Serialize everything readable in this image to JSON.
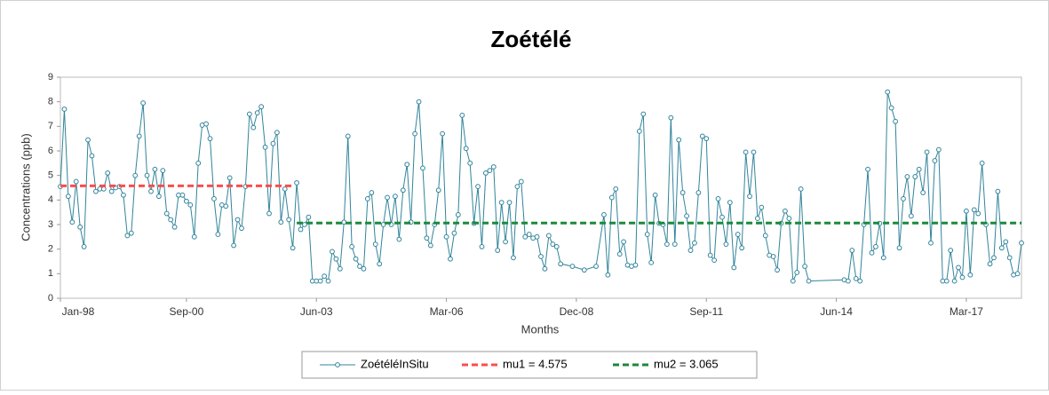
{
  "chart_data": {
    "type": "line",
    "title": "Zoétélé",
    "x_label": "Months",
    "y_label": "Concentrations (ppb)",
    "xlim": [
      "1998-01",
      "2018-05"
    ],
    "xticks": [
      {
        "value": "1998-01",
        "label": "Jan-98"
      },
      {
        "value": "2000-09",
        "label": "Sep-00"
      },
      {
        "value": "2003-06",
        "label": "Jun-03"
      },
      {
        "value": "2006-03",
        "label": "Mar-06"
      },
      {
        "value": "2008-12",
        "label": "Dec-08"
      },
      {
        "value": "2011-09",
        "label": "Sep-11"
      },
      {
        "value": "2014-06",
        "label": "Jun-14"
      },
      {
        "value": "2017-03",
        "label": "Mar-17"
      }
    ],
    "ylim": [
      0,
      9
    ],
    "yticks": [
      0,
      1,
      2,
      3,
      4,
      5,
      6,
      7,
      8,
      9
    ],
    "grid": false,
    "series": [
      {
        "name": "ZoétéléInSitu",
        "color": "#31849b",
        "style": "solid-markers",
        "x": [
          "1998-01",
          "1998-02",
          "1998-03",
          "1998-04",
          "1998-05",
          "1998-06",
          "1998-07",
          "1998-08",
          "1998-09",
          "1998-10",
          "1998-11",
          "1998-12",
          "1999-01",
          "1999-02",
          "1999-03",
          "1999-04",
          "1999-05",
          "1999-06",
          "1999-07",
          "1999-08",
          "1999-09",
          "1999-10",
          "1999-11",
          "1999-12",
          "2000-01",
          "2000-02",
          "2000-03",
          "2000-04",
          "2000-05",
          "2000-06",
          "2000-07",
          "2000-08",
          "2000-09",
          "2000-10",
          "2000-11",
          "2000-12",
          "2001-01",
          "2001-02",
          "2001-03",
          "2001-04",
          "2001-05",
          "2001-06",
          "2001-07",
          "2001-08",
          "2001-09",
          "2001-10",
          "2001-11",
          "2001-12",
          "2002-01",
          "2002-02",
          "2002-03",
          "2002-04",
          "2002-05",
          "2002-06",
          "2002-07",
          "2002-08",
          "2002-09",
          "2002-10",
          "2002-11",
          "2002-12",
          "2003-01",
          "2003-02",
          "2003-03",
          "2003-04",
          "2003-05",
          "2003-06",
          "2003-07",
          "2003-08",
          "2003-09",
          "2003-10",
          "2003-11",
          "2003-12",
          "2004-01",
          "2004-02",
          "2004-03",
          "2004-04",
          "2004-05",
          "2004-06",
          "2004-07",
          "2004-08",
          "2004-09",
          "2004-10",
          "2004-11",
          "2004-12",
          "2005-01",
          "2005-02",
          "2005-03",
          "2005-04",
          "2005-05",
          "2005-06",
          "2005-07",
          "2005-08",
          "2005-09",
          "2005-10",
          "2005-11",
          "2005-12",
          "2006-01",
          "2006-02",
          "2006-03",
          "2006-04",
          "2006-05",
          "2006-06",
          "2006-07",
          "2006-08",
          "2006-09",
          "2006-10",
          "2006-11",
          "2006-12",
          "2007-01",
          "2007-02",
          "2007-03",
          "2007-04",
          "2007-05",
          "2007-06",
          "2007-07",
          "2007-08",
          "2007-09",
          "2007-10",
          "2007-11",
          "2007-12",
          "2008-01",
          "2008-02",
          "2008-03",
          "2008-04",
          "2008-05",
          "2008-06",
          "2008-07",
          "2008-08",
          "2008-11",
          "2009-02",
          "2009-05",
          "2009-07",
          "2009-08",
          "2009-09",
          "2009-10",
          "2009-11",
          "2009-12",
          "2010-01",
          "2010-02",
          "2010-03",
          "2010-04",
          "2010-05",
          "2010-06",
          "2010-07",
          "2010-08",
          "2010-09",
          "2010-10",
          "2010-11",
          "2010-12",
          "2011-01",
          "2011-02",
          "2011-03",
          "2011-04",
          "2011-05",
          "2011-06",
          "2011-07",
          "2011-08",
          "2011-09",
          "2011-10",
          "2011-11",
          "2011-12",
          "2012-01",
          "2012-02",
          "2012-03",
          "2012-04",
          "2012-05",
          "2012-06",
          "2012-07",
          "2012-08",
          "2012-09",
          "2012-10",
          "2012-11",
          "2012-12",
          "2013-01",
          "2013-02",
          "2013-03",
          "2013-04",
          "2013-05",
          "2013-06",
          "2013-07",
          "2013-08",
          "2013-09",
          "2013-10",
          "2013-11",
          "2014-08",
          "2014-09",
          "2014-10",
          "2014-11",
          "2014-12",
          "2015-01",
          "2015-02",
          "2015-03",
          "2015-04",
          "2015-05",
          "2015-06",
          "2015-07",
          "2015-08",
          "2015-09",
          "2015-10",
          "2015-11",
          "2015-12",
          "2016-01",
          "2016-02",
          "2016-03",
          "2016-04",
          "2016-05",
          "2016-06",
          "2016-07",
          "2016-08",
          "2016-09",
          "2016-10",
          "2016-11",
          "2016-12",
          "2017-01",
          "2017-02",
          "2017-03",
          "2017-04",
          "2017-05",
          "2017-06",
          "2017-07",
          "2017-08",
          "2017-09",
          "2017-10",
          "2017-11",
          "2017-12",
          "2018-01",
          "2018-02",
          "2018-03",
          "2018-04",
          "2018-05"
        ],
        "values": [
          4.55,
          7.7,
          4.15,
          3.1,
          4.75,
          2.9,
          2.1,
          6.45,
          5.8,
          4.35,
          4.45,
          4.45,
          5.1,
          4.35,
          4.5,
          4.55,
          4.2,
          2.55,
          2.65,
          5.0,
          6.6,
          7.95,
          5.0,
          4.35,
          5.25,
          4.15,
          5.2,
          3.45,
          3.2,
          2.9,
          4.2,
          4.2,
          3.95,
          3.8,
          2.5,
          5.5,
          7.05,
          7.1,
          6.5,
          4.05,
          2.6,
          3.8,
          3.75,
          4.9,
          2.15,
          3.2,
          2.85,
          4.55,
          7.5,
          6.95,
          7.55,
          7.8,
          6.15,
          3.45,
          6.3,
          6.75,
          3.1,
          4.45,
          3.2,
          2.05,
          4.7,
          2.8,
          3.0,
          3.3,
          0.7,
          0.7,
          0.7,
          0.9,
          0.7,
          1.9,
          1.6,
          1.2,
          3.1,
          6.6,
          2.1,
          1.6,
          1.3,
          1.2,
          4.05,
          4.3,
          2.2,
          1.4,
          3.0,
          4.1,
          3.0,
          4.15,
          2.4,
          4.4,
          5.45,
          3.1,
          6.7,
          8.0,
          5.3,
          2.45,
          2.15,
          3.0,
          4.4,
          6.7,
          2.5,
          1.6,
          2.65,
          3.4,
          7.45,
          6.1,
          5.5,
          3.05,
          4.55,
          2.1,
          5.1,
          5.2,
          5.35,
          1.95,
          3.9,
          2.3,
          3.9,
          1.65,
          4.55,
          4.75,
          2.5,
          2.6,
          2.45,
          2.5,
          1.7,
          1.2,
          2.55,
          2.2,
          2.1,
          1.4,
          1.3,
          1.15,
          1.3,
          3.4,
          0.95,
          4.1,
          4.45,
          1.8,
          2.3,
          1.35,
          1.3,
          1.35,
          6.8,
          7.5,
          2.6,
          1.45,
          4.2,
          3.05,
          3.0,
          2.2,
          7.35,
          2.2,
          6.45,
          4.3,
          3.35,
          1.95,
          2.25,
          4.3,
          6.6,
          6.5,
          1.75,
          1.55,
          4.05,
          3.3,
          2.2,
          3.9,
          1.25,
          2.6,
          2.05,
          5.95,
          4.15,
          5.95,
          3.25,
          3.7,
          2.55,
          1.75,
          1.7,
          1.15,
          3.05,
          3.55,
          3.25,
          0.7,
          1.05,
          4.45,
          1.3,
          0.7,
          0.75,
          0.7,
          1.95,
          0.8,
          0.7,
          3.0,
          5.25,
          1.85,
          2.1,
          3.05,
          1.65,
          8.4,
          7.75,
          7.2,
          2.05,
          4.05,
          4.95,
          3.35,
          4.95,
          5.25,
          4.3,
          5.95,
          2.25,
          5.6,
          6.05,
          0.7,
          0.7,
          1.95,
          0.7,
          1.25,
          0.85,
          3.55,
          0.95,
          3.6,
          3.45,
          5.5,
          3.0,
          1.4,
          1.65,
          4.35,
          2.05,
          2.3,
          1.65,
          0.95,
          1.0,
          2.25
        ]
      },
      {
        "name": "mu1 = 4.575",
        "color": "#ff4b4b",
        "style": "dashed",
        "x": [
          "1998-01",
          "2002-12"
        ],
        "values": [
          4.575,
          4.575
        ]
      },
      {
        "name": "mu2 = 3.065",
        "color": "#1a8a3a",
        "style": "dashed",
        "x": [
          "2003-01",
          "2018-05"
        ],
        "values": [
          3.065,
          3.065
        ]
      }
    ]
  }
}
